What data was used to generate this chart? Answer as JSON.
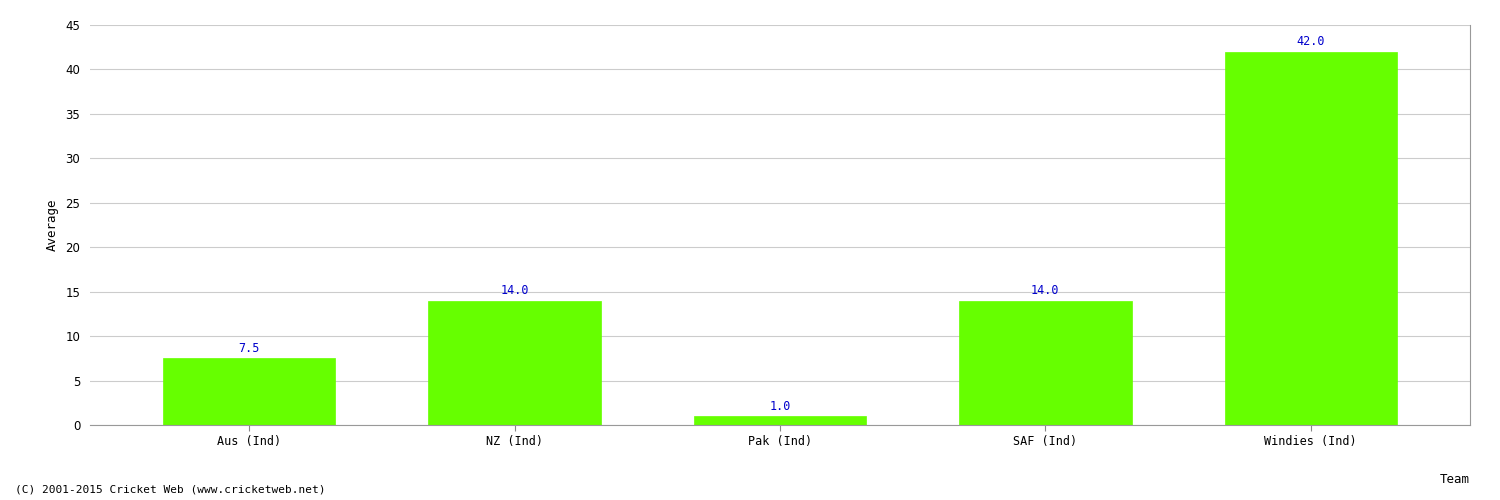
{
  "categories": [
    "Aus (Ind)",
    "NZ (Ind)",
    "Pak (Ind)",
    "SAF (Ind)",
    "Windies (Ind)"
  ],
  "values": [
    7.5,
    14.0,
    1.0,
    14.0,
    42.0
  ],
  "bar_color": "#66ff00",
  "bar_edge_color": "#66ff00",
  "label_color": "#0000cc",
  "xlabel": "Team",
  "ylabel": "Average",
  "ylim": [
    0,
    45
  ],
  "yticks": [
    0,
    5,
    10,
    15,
    20,
    25,
    30,
    35,
    40,
    45
  ],
  "label_fontsize": 8.5,
  "axis_label_fontsize": 9,
  "tick_fontsize": 8.5,
  "footer": "(C) 2001-2015 Cricket Web (www.cricketweb.net)",
  "footer_fontsize": 8,
  "background_color": "#ffffff",
  "grid_color": "#cccccc"
}
